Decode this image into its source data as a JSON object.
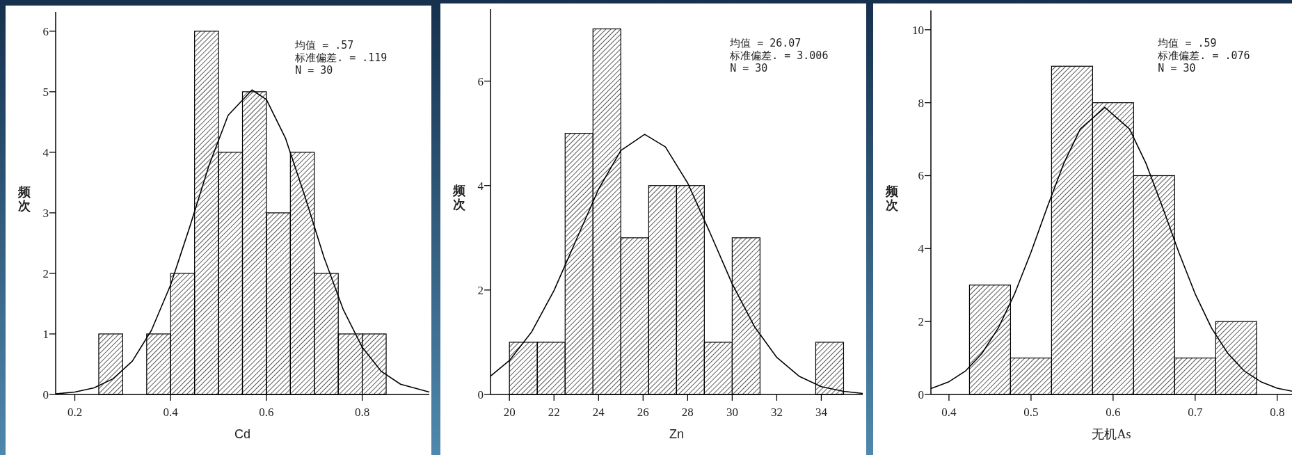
{
  "chart_data": [
    {
      "type": "histogram",
      "xlabel": "Cd",
      "ylabel": "频次",
      "annotations": [
        "均值 = .57",
        "标准偏差. = .119",
        "N = 30"
      ],
      "xlim": [
        0.16,
        0.94
      ],
      "ylim": [
        0,
        6.32
      ],
      "xticks": [
        0.2,
        0.4,
        0.6,
        0.8
      ],
      "yticks": [
        0,
        1,
        2,
        3,
        4,
        5,
        6
      ],
      "color": "#000000",
      "bins": [
        0.25,
        0.3,
        0.35,
        0.4,
        0.45,
        0.5,
        0.55,
        0.6,
        0.65,
        0.7,
        0.75,
        0.8,
        0.85
      ],
      "values": [
        1,
        0,
        1,
        2,
        6,
        4,
        5,
        3,
        4,
        2,
        1,
        1
      ],
      "series": [
        {
          "type": "line",
          "color": "#000000",
          "x": [
            0.16,
            0.2,
            0.24,
            0.28,
            0.32,
            0.36,
            0.4,
            0.44,
            0.48,
            0.52,
            0.57,
            0.6,
            0.64,
            0.68,
            0.72,
            0.76,
            0.8,
            0.84,
            0.88,
            0.94
          ],
          "values": [
            0.01,
            0.04,
            0.11,
            0.26,
            0.55,
            1.06,
            1.81,
            2.77,
            3.78,
            4.61,
            5.03,
            4.87,
            4.23,
            3.28,
            2.27,
            1.41,
            0.78,
            0.38,
            0.17,
            0.04
          ]
        }
      ]
    },
    {
      "type": "histogram",
      "xlabel": "Zn",
      "ylabel": "频次",
      "annotations": [
        "均值 = 26.07",
        "标准偏差. = 3.006",
        "N = 30"
      ],
      "xlim": [
        19.15,
        35.86
      ],
      "ylim": [
        0,
        7.38
      ],
      "xticks": [
        20,
        22,
        24,
        26,
        28,
        30,
        32,
        34
      ],
      "yticks": [
        0,
        2,
        4,
        6
      ],
      "color": "#000000",
      "bins": [
        20,
        21.25,
        22.5,
        23.75,
        25,
        26.25,
        27.5,
        28.75,
        30,
        31.25,
        32.5,
        33.75,
        35
      ],
      "values": [
        1,
        1,
        5,
        7,
        3,
        4,
        4,
        1,
        3,
        0,
        0,
        1
      ],
      "series": [
        {
          "type": "line",
          "color": "#000000",
          "x": [
            19.15,
            20,
            21,
            22,
            23,
            24,
            25,
            26.07,
            27,
            28,
            29,
            30,
            31,
            32,
            33,
            34,
            35,
            35.86
          ],
          "values": [
            0.35,
            0.65,
            1.2,
            1.99,
            2.96,
            3.93,
            4.67,
            4.98,
            4.74,
            4.05,
            3.1,
            2.12,
            1.3,
            0.71,
            0.35,
            0.15,
            0.06,
            0.02
          ]
        }
      ]
    },
    {
      "type": "histogram",
      "xlabel": "无机As",
      "ylabel": "频次",
      "annotations": [
        "均值 = .59",
        "标准偏差. = .076",
        "N = 30"
      ],
      "xlim": [
        0.378,
        0.818
      ],
      "ylim": [
        0,
        10.53
      ],
      "xticks": [
        0.4,
        0.5,
        0.6,
        0.7,
        0.8
      ],
      "yticks": [
        0,
        2,
        4,
        6,
        8,
        10
      ],
      "color": "#000000",
      "bins": [
        0.425,
        0.475,
        0.525,
        0.575,
        0.625,
        0.675,
        0.725,
        0.775
      ],
      "values": [
        3,
        1,
        9,
        8,
        6,
        1,
        2
      ],
      "series": [
        {
          "type": "line",
          "color": "#000000",
          "x": [
            0.378,
            0.4,
            0.42,
            0.44,
            0.46,
            0.48,
            0.5,
            0.52,
            0.54,
            0.56,
            0.59,
            0.62,
            0.64,
            0.66,
            0.68,
            0.7,
            0.72,
            0.74,
            0.76,
            0.78,
            0.8,
            0.818
          ],
          "values": [
            0.16,
            0.35,
            0.64,
            1.12,
            1.82,
            2.76,
            3.9,
            5.15,
            6.34,
            7.28,
            7.87,
            7.28,
            6.34,
            5.15,
            3.9,
            2.76,
            1.82,
            1.12,
            0.64,
            0.35,
            0.17,
            0.09
          ]
        }
      ]
    }
  ]
}
